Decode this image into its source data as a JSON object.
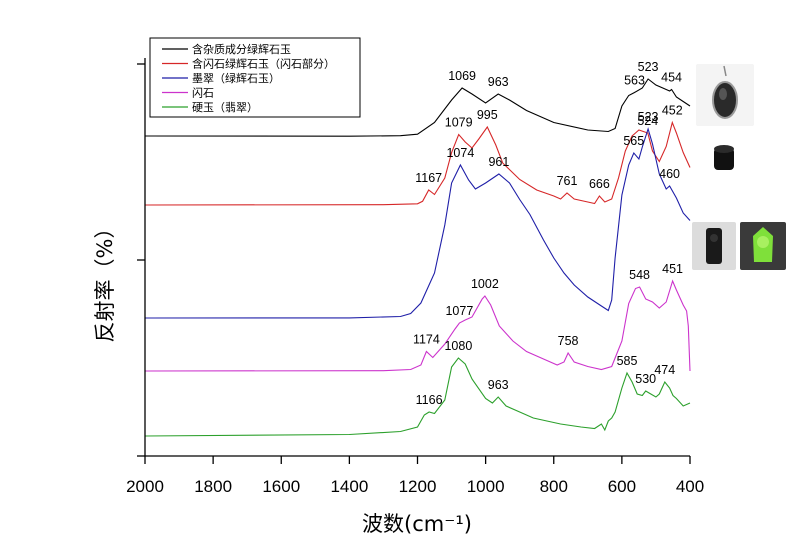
{
  "chart_data": {
    "type": "line",
    "xlabel": "波数(cm⁻¹)",
    "ylabel": "反射率（%）",
    "xlim": [
      2000,
      400
    ],
    "x_ticks": [
      "2000",
      "1800",
      "1600",
      "1400",
      "1200",
      "1000",
      "800",
      "600",
      "400"
    ],
    "legend_position": "top-left",
    "series": [
      {
        "name": "含杂质成分绿辉石玉",
        "color": "#000000",
        "points": [
          [
            2000,
            0.0
          ],
          [
            1400,
            -0.1
          ],
          [
            1250,
            0.2
          ],
          [
            1200,
            1.2
          ],
          [
            1150,
            9
          ],
          [
            1100,
            24
          ],
          [
            1069,
            32
          ],
          [
            1040,
            28
          ],
          [
            1000,
            22
          ],
          [
            963,
            28
          ],
          [
            930,
            24
          ],
          [
            880,
            17
          ],
          [
            800,
            9
          ],
          [
            700,
            4
          ],
          [
            640,
            3
          ],
          [
            620,
            5
          ],
          [
            600,
            20
          ],
          [
            580,
            27
          ],
          [
            563,
            29
          ],
          [
            540,
            32
          ],
          [
            523,
            38
          ],
          [
            500,
            34
          ],
          [
            480,
            32
          ],
          [
            470,
            31
          ],
          [
            460,
            30
          ],
          [
            454,
            31
          ],
          [
            440,
            26
          ],
          [
            420,
            23
          ],
          [
            400,
            20
          ]
        ],
        "peaks": [
          {
            "x": 1069,
            "label": "1069"
          },
          {
            "x": 963,
            "label": "963"
          },
          {
            "x": 563,
            "label": "563"
          },
          {
            "x": 523,
            "label": "523"
          },
          {
            "x": 454,
            "label": "454"
          }
        ]
      },
      {
        "name": "含闪石绿辉石玉（闪石部分）",
        "color": "#d62728",
        "points": [
          [
            2000,
            0.0
          ],
          [
            1300,
            0.2
          ],
          [
            1200,
            0.8
          ],
          [
            1185,
            2.5
          ],
          [
            1167,
            10
          ],
          [
            1150,
            7
          ],
          [
            1120,
            18
          ],
          [
            1100,
            35
          ],
          [
            1079,
            47
          ],
          [
            1060,
            42
          ],
          [
            1040,
            38
          ],
          [
            1020,
            44
          ],
          [
            995,
            52
          ],
          [
            970,
            40
          ],
          [
            950,
            28
          ],
          [
            900,
            17
          ],
          [
            850,
            10
          ],
          [
            800,
            6
          ],
          [
            780,
            4
          ],
          [
            761,
            8
          ],
          [
            740,
            4
          ],
          [
            700,
            2
          ],
          [
            680,
            1
          ],
          [
            666,
            6
          ],
          [
            650,
            2
          ],
          [
            630,
            4
          ],
          [
            610,
            18
          ],
          [
            590,
            36
          ],
          [
            570,
            46
          ],
          [
            550,
            50
          ],
          [
            524,
            48
          ],
          [
            510,
            36
          ],
          [
            490,
            29
          ],
          [
            470,
            39
          ],
          [
            452,
            55
          ],
          [
            440,
            48
          ],
          [
            420,
            35
          ],
          [
            400,
            25
          ]
        ],
        "peaks": [
          {
            "x": 1167,
            "label": "1167"
          },
          {
            "x": 1079,
            "label": "1079"
          },
          {
            "x": 995,
            "label": "995"
          },
          {
            "x": 761,
            "label": "761"
          },
          {
            "x": 666,
            "label": "666"
          },
          {
            "x": 524,
            "label": "524"
          },
          {
            "x": 452,
            "label": "452"
          }
        ]
      },
      {
        "name": "墨翠（绿辉石玉）",
        "color": "#1f1fa8",
        "points": [
          [
            2000,
            0.0
          ],
          [
            1400,
            0.1
          ],
          [
            1250,
            1.0
          ],
          [
            1220,
            3
          ],
          [
            1190,
            10
          ],
          [
            1150,
            30
          ],
          [
            1120,
            62
          ],
          [
            1100,
            90
          ],
          [
            1074,
            102
          ],
          [
            1050,
            92
          ],
          [
            1030,
            86
          ],
          [
            1000,
            90
          ],
          [
            961,
            96
          ],
          [
            930,
            90
          ],
          [
            900,
            79
          ],
          [
            870,
            69
          ],
          [
            830,
            52
          ],
          [
            800,
            40
          ],
          [
            770,
            30
          ],
          [
            740,
            22
          ],
          [
            700,
            14
          ],
          [
            660,
            8
          ],
          [
            640,
            5
          ],
          [
            630,
            12
          ],
          [
            620,
            40
          ],
          [
            600,
            82
          ],
          [
            580,
            102
          ],
          [
            565,
            110
          ],
          [
            550,
            106
          ],
          [
            540,
            114
          ],
          [
            523,
            126
          ],
          [
            510,
            116
          ],
          [
            490,
            96
          ],
          [
            470,
            86
          ],
          [
            460,
            88
          ],
          [
            440,
            80
          ],
          [
            420,
            70
          ],
          [
            400,
            65
          ]
        ],
        "peaks": [
          {
            "x": 1074,
            "label": "1074"
          },
          {
            "x": 961,
            "label": "961"
          },
          {
            "x": 565,
            "label": "565"
          },
          {
            "x": 523,
            "label": "523"
          },
          {
            "x": 460,
            "label": "460"
          }
        ]
      },
      {
        "name": "闪石",
        "color": "#cc33cc",
        "points": [
          [
            2000,
            0.0
          ],
          [
            1300,
            0.2
          ],
          [
            1220,
            1.0
          ],
          [
            1190,
            4
          ],
          [
            1174,
            13
          ],
          [
            1155,
            9
          ],
          [
            1120,
            18
          ],
          [
            1090,
            28
          ],
          [
            1077,
            32
          ],
          [
            1060,
            34
          ],
          [
            1040,
            36
          ],
          [
            1010,
            48
          ],
          [
            1002,
            50
          ],
          [
            985,
            44
          ],
          [
            960,
            30
          ],
          [
            920,
            20
          ],
          [
            880,
            13
          ],
          [
            830,
            8
          ],
          [
            790,
            4
          ],
          [
            770,
            6
          ],
          [
            758,
            12
          ],
          [
            740,
            6
          ],
          [
            700,
            3
          ],
          [
            660,
            1
          ],
          [
            630,
            3
          ],
          [
            600,
            20
          ],
          [
            580,
            45
          ],
          [
            560,
            55
          ],
          [
            548,
            56
          ],
          [
            530,
            48
          ],
          [
            510,
            46
          ],
          [
            490,
            42
          ],
          [
            470,
            46
          ],
          [
            451,
            60
          ],
          [
            440,
            54
          ],
          [
            420,
            44
          ],
          [
            410,
            40
          ],
          [
            405,
            30
          ],
          [
            400,
            0
          ]
        ],
        "peaks": [
          {
            "x": 1174,
            "label": "1174"
          },
          {
            "x": 1077,
            "label": "1077"
          },
          {
            "x": 1002,
            "label": "1002"
          },
          {
            "x": 758,
            "label": "758"
          },
          {
            "x": 548,
            "label": "548"
          },
          {
            "x": 451,
            "label": "451"
          }
        ]
      },
      {
        "name": "硬玉（翡翠）",
        "color": "#2ca02c",
        "points": [
          [
            2000,
            0.0
          ],
          [
            1400,
            1.0
          ],
          [
            1250,
            3
          ],
          [
            1200,
            6
          ],
          [
            1180,
            14
          ],
          [
            1166,
            16
          ],
          [
            1150,
            15
          ],
          [
            1120,
            24
          ],
          [
            1100,
            46
          ],
          [
            1080,
            52
          ],
          [
            1060,
            48
          ],
          [
            1040,
            38
          ],
          [
            1000,
            25
          ],
          [
            980,
            22
          ],
          [
            963,
            26
          ],
          [
            940,
            20
          ],
          [
            900,
            16
          ],
          [
            860,
            12
          ],
          [
            820,
            10
          ],
          [
            780,
            8
          ],
          [
            720,
            6
          ],
          [
            680,
            5
          ],
          [
            660,
            8
          ],
          [
            650,
            4
          ],
          [
            640,
            10
          ],
          [
            630,
            12
          ],
          [
            620,
            16
          ],
          [
            600,
            32
          ],
          [
            585,
            42
          ],
          [
            570,
            36
          ],
          [
            555,
            28
          ],
          [
            540,
            27
          ],
          [
            530,
            30
          ],
          [
            515,
            28
          ],
          [
            500,
            26
          ],
          [
            490,
            28
          ],
          [
            474,
            36
          ],
          [
            460,
            32
          ],
          [
            450,
            27
          ],
          [
            440,
            25
          ],
          [
            420,
            20
          ],
          [
            400,
            22
          ]
        ],
        "peaks": [
          {
            "x": 1166,
            "label": "1166"
          },
          {
            "x": 1080,
            "label": "1080"
          },
          {
            "x": 963,
            "label": "963"
          },
          {
            "x": 585,
            "label": "585"
          },
          {
            "x": 530,
            "label": "530"
          },
          {
            "x": 474,
            "label": "474"
          }
        ]
      }
    ]
  }
}
